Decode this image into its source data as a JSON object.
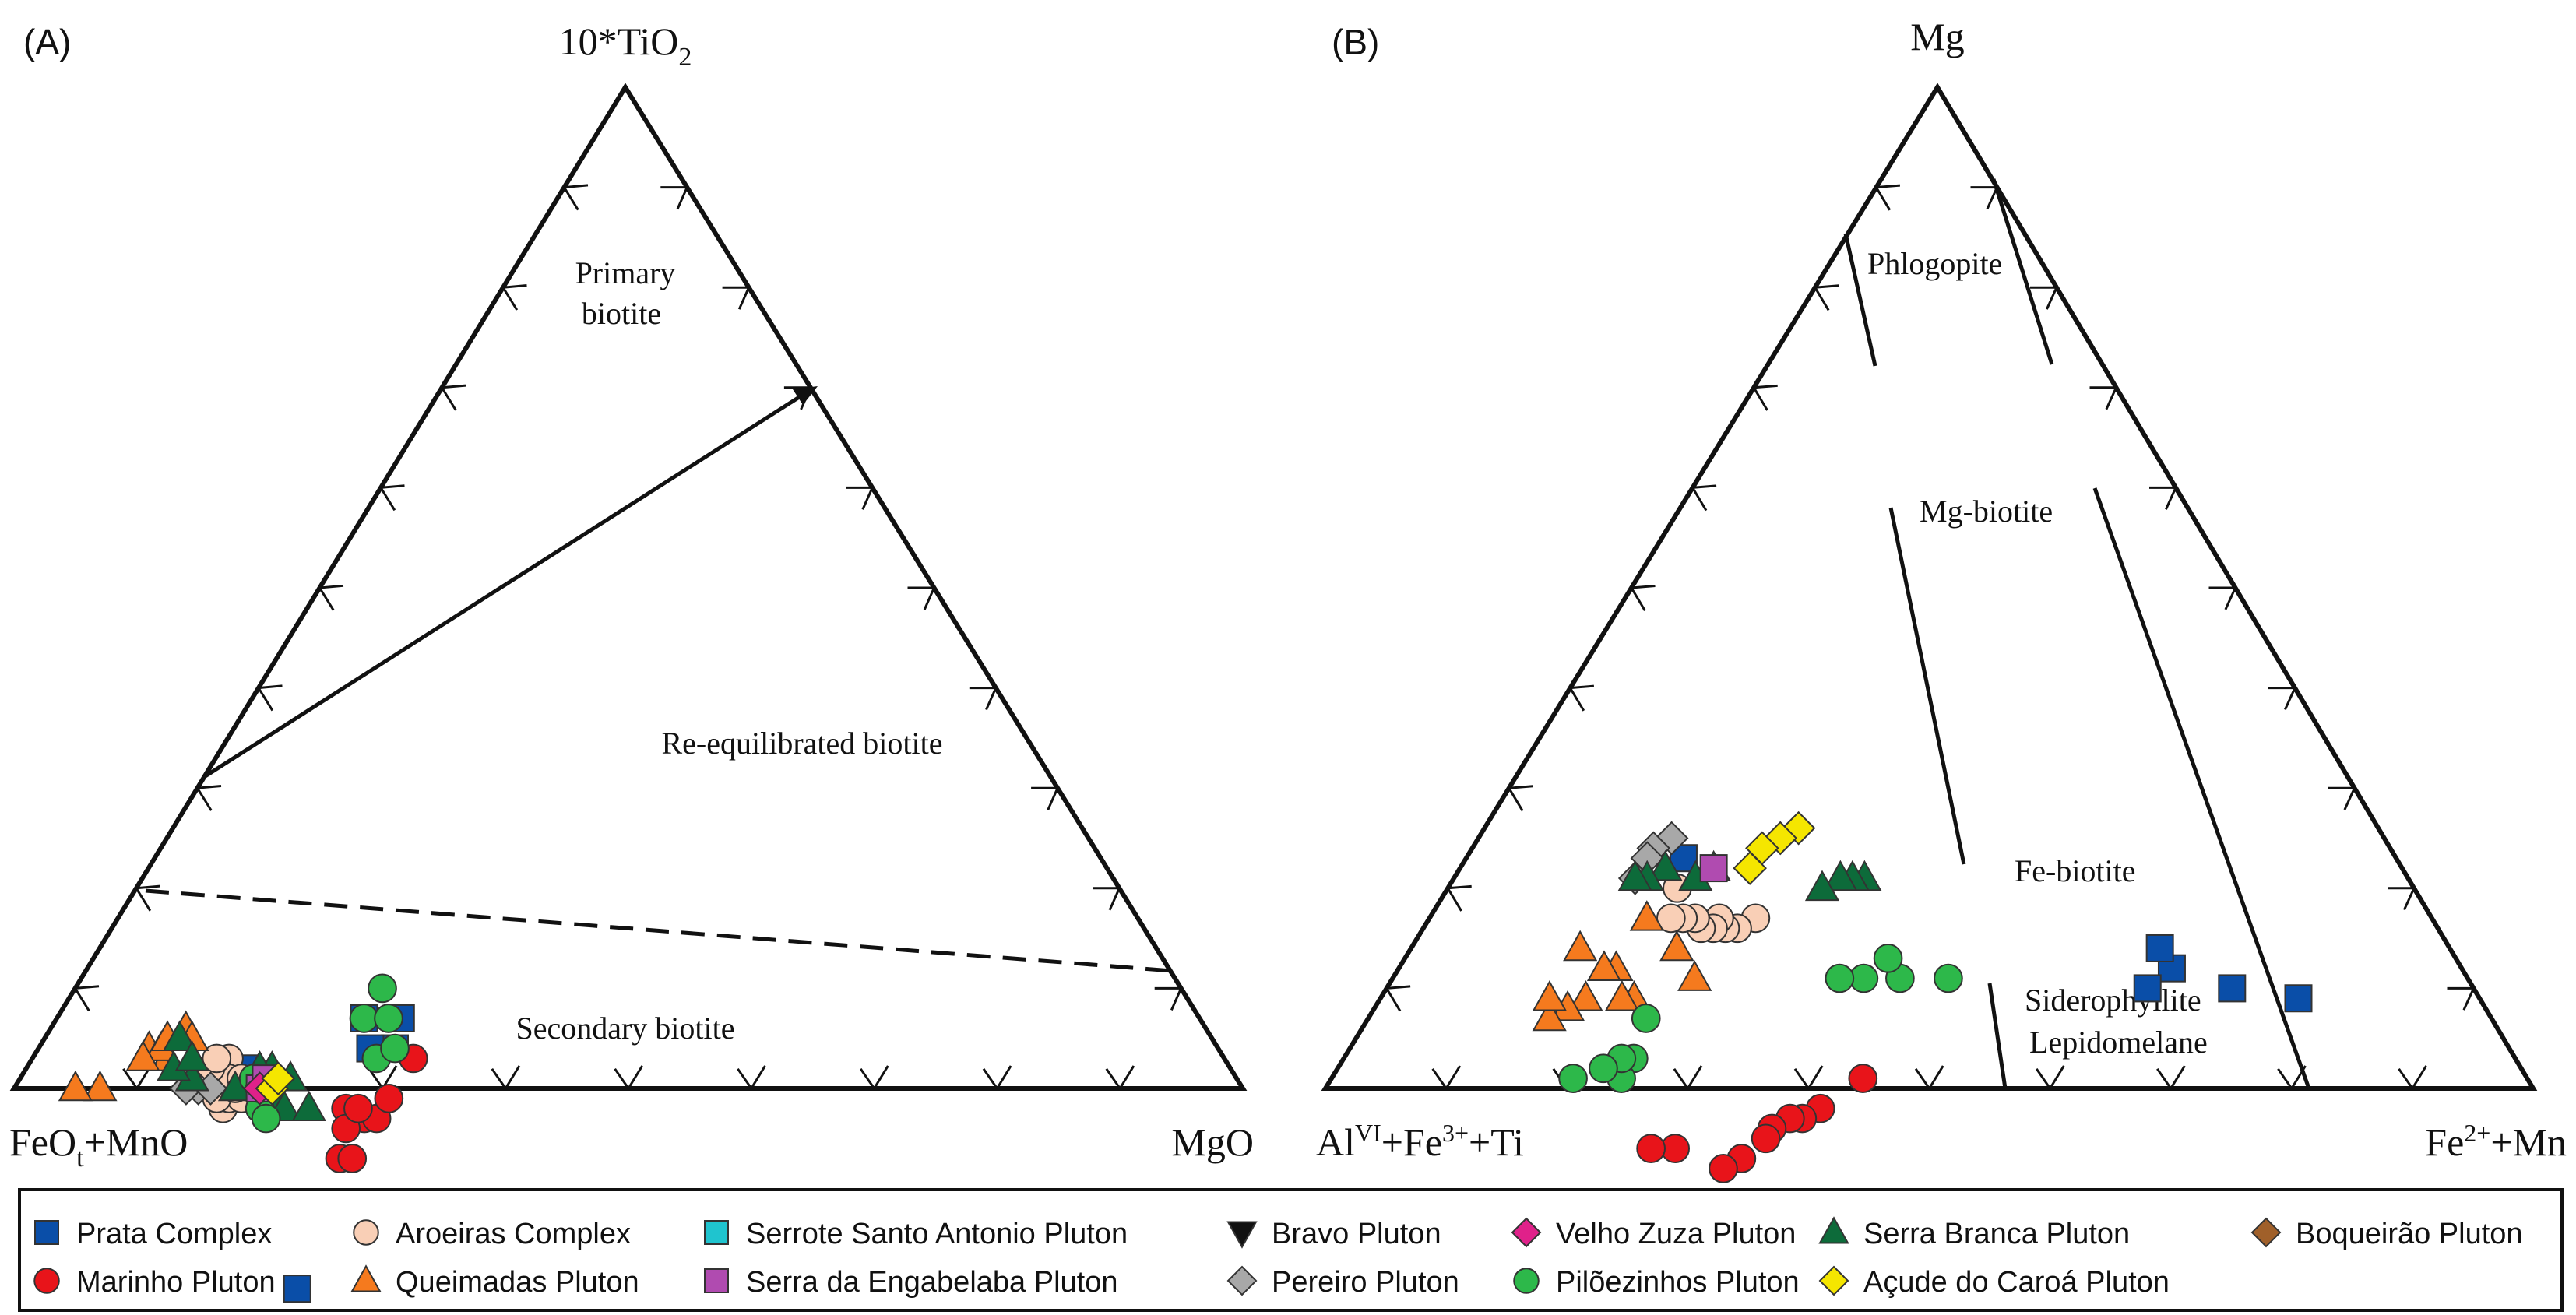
{
  "chart_data": [
    {
      "type": "scatter",
      "panel_label": "(A)",
      "ternary": true,
      "apices": {
        "top": "10*TiO2",
        "left": "FeOt+MnO",
        "right": "MgO"
      },
      "apex_labels": {
        "top": {
          "main": "10*TiO",
          "sub": "2"
        },
        "left": {
          "pre": "FeO",
          "sub": "t",
          "post": "+MnO"
        },
        "right": {
          "main": "MgO"
        }
      },
      "fields": [
        "Primary",
        "biotite",
        "Re-equilibrated biotite",
        "Secondary biotite"
      ],
      "series": [
        {
          "name": "Prata Complex",
          "points": [
            [
              0.8,
              0.18
            ],
            [
              0.68,
              0.25
            ],
            [
              0.67,
              0.29
            ],
            [
              0.69,
              0.27
            ],
            [
              0.65,
              0.28
            ],
            [
              0.87,
              0.33
            ]
          ]
        },
        {
          "name": "Marinho Pluton",
          "points": [
            [
              0.77,
              0.3
            ],
            [
              0.76,
              0.31
            ],
            [
              0.73,
              0.3
            ],
            [
              0.72,
              0.31
            ],
            [
              0.74,
              0.28
            ],
            [
              0.75,
              0.29
            ],
            [
              0.73,
              0.29
            ],
            [
              0.7,
              0.31
            ],
            [
              0.66,
              0.31
            ]
          ]
        },
        {
          "name": "Aroeiras Complex",
          "points": [
            [
              0.84,
              0.18
            ],
            [
              0.83,
              0.18
            ],
            [
              0.82,
              0.19
            ],
            [
              0.84,
              0.17
            ],
            [
              0.82,
              0.18
            ],
            [
              0.83,
              0.16
            ],
            [
              0.81,
              0.16
            ],
            [
              0.82,
              0.17
            ],
            [
              0.81,
              0.18
            ],
            [
              0.83,
              0.15
            ],
            [
              0.82,
              0.15
            ]
          ]
        },
        {
          "name": "Queimadas Pluton",
          "points": [
            [
              0.87,
              0.09
            ],
            [
              0.86,
              0.11
            ],
            [
              0.86,
              0.1
            ],
            [
              0.85,
              0.1
            ],
            [
              0.83,
              0.11
            ],
            [
              0.88,
              0.09
            ],
            [
              0.93,
              0.07
            ],
            [
              0.95,
              0.05
            ],
            [
              0.83,
              0.12
            ]
          ]
        },
        {
          "name": "Pereiro Pluton",
          "points": [
            [
              0.85,
              0.15
            ],
            [
              0.86,
              0.14
            ],
            [
              0.84,
              0.16
            ]
          ]
        },
        {
          "name": "Serra Branca Pluton",
          "points": [
            [
              0.8,
              0.21
            ],
            [
              0.79,
              0.22
            ],
            [
              0.79,
              0.23
            ],
            [
              0.77,
              0.25
            ],
            [
              0.77,
              0.22
            ],
            [
              0.78,
              0.2
            ],
            [
              0.79,
              0.19
            ],
            [
              0.82,
              0.18
            ],
            [
              0.85,
              0.14
            ],
            [
              0.86,
              0.12
            ],
            [
              0.84,
              0.11
            ],
            [
              0.84,
              0.13
            ]
          ]
        },
        {
          "name": "Pilõezinhos Pluton",
          "points": [
            [
              0.81,
              0.21
            ],
            [
              0.81,
              0.22
            ],
            [
              0.8,
              0.19
            ],
            [
              0.8,
              0.2
            ],
            [
              0.69,
              0.28
            ],
            [
              0.67,
              0.29
            ],
            [
              0.68,
              0.25
            ],
            [
              0.66,
              0.27
            ],
            [
              0.65,
              0.25
            ]
          ]
        },
        {
          "name": "Serra da Engabelaba Pluton",
          "points": [
            [
              0.8,
              0.2
            ],
            [
              0.79,
              0.2
            ]
          ]
        },
        {
          "name": "Velho Zuza Pluton",
          "points": [
            [
              0.8,
              0.2
            ]
          ]
        },
        {
          "name": "Açude do Caroá Pluton",
          "points": [
            [
              0.79,
              0.21
            ],
            [
              0.78,
              0.21
            ]
          ]
        }
      ]
    },
    {
      "type": "scatter",
      "panel_label": "(B)",
      "ternary": true,
      "apices": {
        "top": "Mg",
        "left": "AlVI+Fe3++Ti",
        "right": "Fe2++Mn"
      },
      "apex_labels": {
        "top": {
          "main": "Mg"
        },
        "left": {
          "pre": "Al",
          "sup1": "VI",
          "mid": "+Fe",
          "sup2": "3+",
          "post": "+Ti"
        },
        "right": {
          "pre": "Fe",
          "sup": "2+",
          "post": "+Mn"
        }
      },
      "fields": [
        "Phlogopite",
        "Mg-biotite",
        "Fe-biotite",
        "Siderophyllite",
        "Lepidomelane"
      ],
      "series": [
        {
          "name": "Prata Complex",
          "points": [
            [
              0.15,
              0.76
            ],
            [
              0.2,
              0.7
            ],
            [
              0.24,
              0.64
            ],
            [
              0.24,
              0.62
            ],
            [
              0.27,
              0.63
            ],
            [
              0.59,
              0.18
            ]
          ]
        },
        {
          "name": "Marinho Pluton",
          "points": [
            [
              0.55,
              0.44
            ],
            [
              0.6,
              0.42
            ],
            [
              0.62,
              0.41
            ],
            [
              0.63,
              0.4
            ],
            [
              0.65,
              0.39
            ],
            [
              0.66,
              0.39
            ],
            [
              0.69,
              0.38
            ],
            [
              0.71,
              0.37
            ],
            [
              0.74,
              0.32
            ],
            [
              0.76,
              0.3
            ]
          ]
        },
        {
          "name": "Aroeiras Complex",
          "points": [
            [
              0.56,
              0.27
            ],
            [
              0.58,
              0.26
            ],
            [
              0.59,
              0.25
            ],
            [
              0.59,
              0.24
            ],
            [
              0.6,
              0.24
            ],
            [
              0.61,
              0.23
            ],
            [
              0.61,
              0.22
            ],
            [
              0.62,
              0.21
            ],
            [
              0.63,
              0.2
            ],
            [
              0.61,
              0.19
            ]
          ]
        },
        {
          "name": "Queimadas Pluton",
          "points": [
            [
              0.7,
              0.21
            ],
            [
              0.71,
              0.2
            ],
            [
              0.7,
              0.18
            ],
            [
              0.71,
              0.17
            ],
            [
              0.74,
              0.17
            ],
            [
              0.76,
              0.16
            ],
            [
              0.78,
              0.15
            ],
            [
              0.77,
              0.14
            ],
            [
              0.72,
              0.14
            ],
            [
              0.65,
              0.18
            ],
            [
              0.64,
              0.22
            ],
            [
              0.64,
              0.25
            ]
          ]
        },
        {
          "name": "Pereiro Pluton",
          "points": [
            [
              0.59,
              0.16
            ],
            [
              0.61,
              0.15
            ],
            [
              0.62,
              0.15
            ],
            [
              0.64,
              0.15
            ]
          ]
        },
        {
          "name": "Serra Branca Pluton",
          "points": [
            [
              0.45,
              0.34
            ],
            [
              0.46,
              0.33
            ],
            [
              0.47,
              0.32
            ],
            [
              0.49,
              0.31
            ],
            [
              0.57,
              0.21
            ],
            [
              0.59,
              0.2
            ],
            [
              0.61,
              0.17
            ],
            [
              0.63,
              0.16
            ],
            [
              0.64,
              0.15
            ]
          ]
        },
        {
          "name": "Pilõezinhos Pluton",
          "points": [
            [
              0.43,
              0.46
            ],
            [
              0.47,
              0.42
            ],
            [
              0.47,
              0.4
            ],
            [
              0.5,
              0.39
            ],
            [
              0.52,
              0.37
            ],
            [
              0.7,
              0.23
            ],
            [
              0.73,
              0.24
            ],
            [
              0.75,
              0.24
            ],
            [
              0.79,
              0.2
            ],
            [
              0.74,
              0.23
            ],
            [
              0.76,
              0.22
            ]
          ]
        },
        {
          "name": "Serra da Engabelaba Pluton",
          "points": [
            [
              0.57,
              0.21
            ]
          ]
        },
        {
          "name": "Açude do Caroá Pluton",
          "points": [
            [
              0.48,
              0.26
            ],
            [
              0.5,
              0.25
            ],
            [
              0.52,
              0.24
            ],
            [
              0.54,
              0.24
            ]
          ]
        }
      ]
    }
  ],
  "legend": {
    "title": "",
    "items": [
      {
        "name": "Prata Complex",
        "marker": "square",
        "color": "#0a4ea8"
      },
      {
        "name": "Aroeiras Complex",
        "marker": "circle",
        "color": "#f9cfb6"
      },
      {
        "name": "Serrote Santo Antonio Pluton",
        "marker": "square",
        "color": "#1fc4cf"
      },
      {
        "name": "Bravo Pluton",
        "marker": "triangle-down",
        "color": "#111111"
      },
      {
        "name": "Velho Zuza Pluton",
        "marker": "diamond",
        "color": "#e0218a"
      },
      {
        "name": "Serra Branca Pluton",
        "marker": "triangle-up",
        "color": "#0d6b3a"
      },
      {
        "name": "Boqueirão Pluton",
        "marker": "diamond",
        "color": "#a0602a"
      },
      {
        "name": "Marinho Pluton",
        "marker": "circle",
        "color": "#e8141a"
      },
      {
        "name": "Queimadas Pluton",
        "marker": "triangle-up",
        "color": "#f57a1e"
      },
      {
        "name": "Serra da Engabelaba Pluton",
        "marker": "square",
        "color": "#b04bb0"
      },
      {
        "name": "Pereiro Pluton",
        "marker": "diamond",
        "color": "#a8a8a8"
      },
      {
        "name": "Pilõezinhos Pluton",
        "marker": "circle",
        "color": "#2db84a"
      },
      {
        "name": "Açude do Caroá Pluton",
        "marker": "diamond",
        "color": "#f5e600"
      }
    ]
  }
}
